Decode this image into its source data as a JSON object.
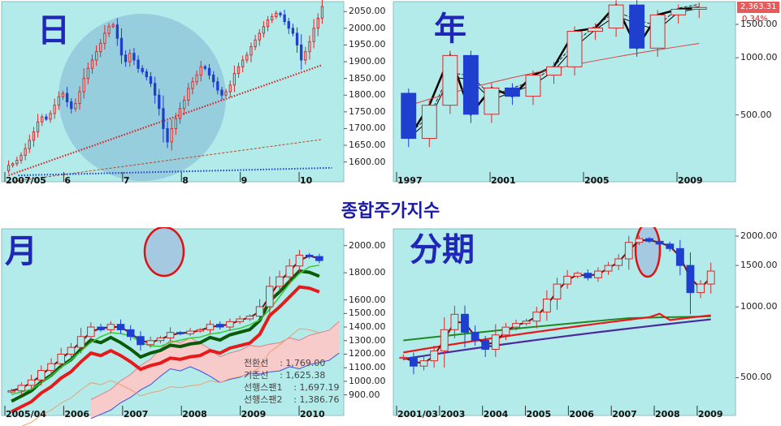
{
  "center_title": "종합주가지수",
  "colors": {
    "background": "#b3ebeb",
    "up_candle": "#d42b2b",
    "down_candle": "#1f3fcf",
    "highlight_circle": "#7fb6d2",
    "red_circle": "#e01010",
    "cloud_fill": "#ffc8c8"
  },
  "chart_data": [
    {
      "type": "candlestick",
      "panel": "daily",
      "label": "日",
      "x_ticks": [
        "2007/05",
        "6",
        "7",
        "8",
        "9",
        "10"
      ],
      "y_ticks": [
        "1600.00",
        "1650.00",
        "1700.00",
        "1750.00",
        "1800.00",
        "1850.00",
        "1900.00",
        "1950.00",
        "2000.00",
        "2050.00"
      ],
      "ylim": [
        1570,
        2070
      ],
      "closes": [
        1590,
        1595,
        1605,
        1620,
        1640,
        1665,
        1690,
        1720,
        1735,
        1728,
        1745,
        1770,
        1795,
        1805,
        1780,
        1760,
        1775,
        1810,
        1850,
        1880,
        1905,
        1930,
        1955,
        1985,
        2005,
        2010,
        1970,
        1920,
        1900,
        1925,
        1905,
        1880,
        1870,
        1855,
        1835,
        1800,
        1760,
        1700,
        1660,
        1700,
        1730,
        1760,
        1785,
        1820,
        1840,
        1860,
        1885,
        1880,
        1860,
        1840,
        1815,
        1800,
        1810,
        1830,
        1865,
        1885,
        1905,
        1920,
        1945,
        1965,
        1985,
        2005,
        2025,
        2035,
        2045,
        2040,
        2020,
        2000,
        1985,
        1950,
        1905,
        1930,
        1960,
        2000,
        2030,
        2065
      ]
    },
    {
      "type": "candlestick",
      "panel": "yearly",
      "label": "年",
      "x_ticks": [
        "1997",
        "2001",
        "2005",
        "2009"
      ],
      "y_ticks": [
        "500.00",
        "1000.00",
        "1500.00"
      ],
      "ylim": [
        250,
        1900
      ],
      "last_price": "2,363.31",
      "change_percent": "0.34%",
      "candles": [
        {
          "year": 1997,
          "open": 650,
          "close": 376
        },
        {
          "year": 1998,
          "open": 376,
          "close": 562
        },
        {
          "year": 1999,
          "open": 562,
          "close": 1028
        },
        {
          "year": 2000,
          "open": 1028,
          "close": 504
        },
        {
          "year": 2001,
          "open": 504,
          "close": 693
        },
        {
          "year": 2002,
          "open": 693,
          "close": 627
        },
        {
          "year": 2003,
          "open": 627,
          "close": 810
        },
        {
          "year": 2004,
          "open": 810,
          "close": 896
        },
        {
          "year": 2005,
          "open": 896,
          "close": 1379
        },
        {
          "year": 2006,
          "open": 1379,
          "close": 1434
        },
        {
          "year": 2007,
          "open": 1434,
          "close": 1897
        },
        {
          "year": 2008,
          "open": 1897,
          "close": 1124
        },
        {
          "year": 2009,
          "open": 1124,
          "close": 1682
        },
        {
          "year": 2010,
          "open": 1682,
          "close": 1800
        },
        {
          "year": 2011,
          "open": 1800,
          "close": 1840
        }
      ]
    },
    {
      "type": "candlestick",
      "panel": "monthly",
      "label": "月",
      "x_ticks": [
        "2005/04",
        "2006",
        "2007",
        "2008",
        "2009",
        "2010"
      ],
      "y_ticks": [
        "900.00",
        "1000.00",
        "1100.00",
        "1200.00",
        "1300.00",
        "1400.00",
        "1500.00",
        "1600.00",
        "1800.00",
        "2000.00"
      ],
      "ylim": [
        820,
        2100
      ],
      "ichimoku": [
        {
          "label": "전환선",
          "value": "1,769.00"
        },
        {
          "label": "기준선",
          "value": "1,625.38"
        },
        {
          "label": "선행스팬1",
          "value": "1,697.19"
        },
        {
          "label": "선행스팬2",
          "value": "1,386.76"
        }
      ],
      "closes": [
        930,
        970,
        1010,
        1080,
        1130,
        1200,
        1250,
        1330,
        1400,
        1380,
        1420,
        1380,
        1330,
        1270,
        1300,
        1320,
        1360,
        1350,
        1370,
        1380,
        1420,
        1400,
        1440,
        1460,
        1480,
        1550,
        1700,
        1770,
        1850,
        1930,
        1920,
        1890
      ]
    },
    {
      "type": "candlestick",
      "panel": "quarterly",
      "label": "分期",
      "x_ticks": [
        "2001/03",
        "2003",
        "2004",
        "2005",
        "2006",
        "2007",
        "2008",
        "2009"
      ],
      "y_ticks": [
        "500.00",
        "1000.00",
        "1500.00",
        "2000.00"
      ],
      "ylim": [
        380,
        2080
      ],
      "closes": [
        610,
        560,
        590,
        650,
        800,
        930,
        780,
        720,
        660,
        760,
        820,
        850,
        870,
        950,
        1080,
        1250,
        1350,
        1390,
        1330,
        1420,
        1500,
        1600,
        1880,
        1950,
        1900,
        1850,
        1770,
        1500,
        1150,
        1250,
        1420
      ]
    }
  ]
}
